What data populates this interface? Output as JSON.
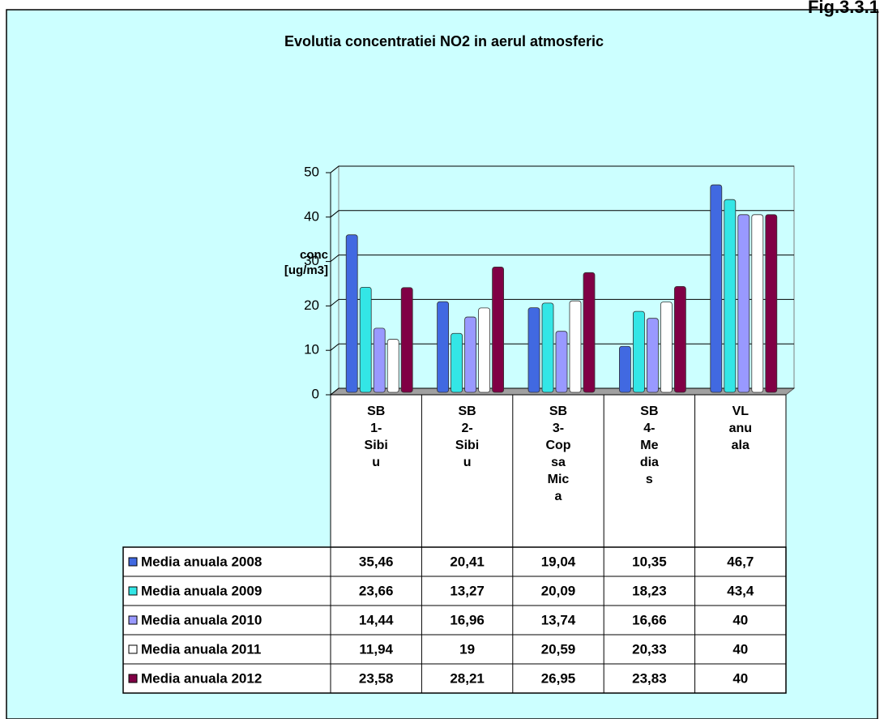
{
  "chart_data": {
    "type": "bar",
    "figure_label": "Fig.3.3.1",
    "title": "Evolutia concentratiei  NO2 in aerul atmosferic",
    "y_label": "conc\n[ug/m3]",
    "categories": [
      "SB\n1-\nSibi\nu",
      "SB\n2-\nSibi\nu",
      "SB\n3-\nCop\nsa\nMic\na",
      "SB\n4-\nMe\ndia\ns",
      "VL\nanu\nala"
    ],
    "series": [
      {
        "name": "Media anuala 2008",
        "color": "#4169e1",
        "values": [
          35.46,
          20.41,
          19.04,
          10.35,
          46.7
        ],
        "value_labels": [
          "35,46",
          "20,41",
          "19,04",
          "10,35",
          "46,7"
        ]
      },
      {
        "name": "Media anuala 2009",
        "color": "#33e6e6",
        "values": [
          23.66,
          13.27,
          20.09,
          18.23,
          43.4
        ],
        "value_labels": [
          "23,66",
          "13,27",
          "20,09",
          "18,23",
          "43,4"
        ]
      },
      {
        "name": "Media anuala 2010",
        "color": "#9999ff",
        "values": [
          14.44,
          16.96,
          13.74,
          16.66,
          40
        ],
        "value_labels": [
          "14,44",
          "16,96",
          "13,74",
          "16,66",
          "40"
        ]
      },
      {
        "name": "Media anuala 2011",
        "color": "#ffffff",
        "values": [
          11.94,
          19,
          20.59,
          20.33,
          40
        ],
        "value_labels": [
          "11,94",
          "19",
          "20,59",
          "20,33",
          "40"
        ]
      },
      {
        "name": "Media anuala 2012",
        "color": "#800045",
        "values": [
          23.58,
          28.21,
          26.95,
          23.83,
          40
        ],
        "value_labels": [
          "23,58",
          "28,21",
          "26,95",
          "23,83",
          "40"
        ]
      }
    ],
    "ylim": [
      0,
      50
    ],
    "yticks": [
      0,
      10,
      20,
      30,
      40,
      50
    ],
    "grid": true
  }
}
